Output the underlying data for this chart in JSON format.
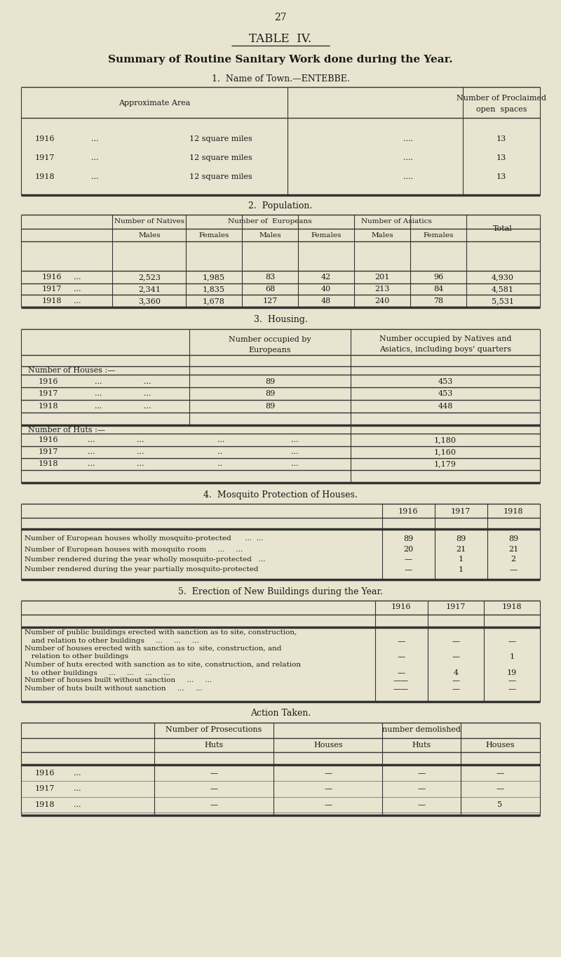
{
  "bg_color": "#e8e4cf",
  "text_color": "#1a1a1a",
  "page_number": "27",
  "main_title": "TABLE  IV.",
  "subtitle": "Summary of Routine Sanitary Work done during the Year.",
  "section1_title": "1.  Name of Town.—ENTEBBE.",
  "section2_title": "2.  Population.",
  "section3_title": "3.  Housing.",
  "section4_title": "4.  Mosquito Protection of Houses.",
  "section5_title": "5.  Erection of New Buildings during the Year.",
  "action_title": "Action Taken."
}
